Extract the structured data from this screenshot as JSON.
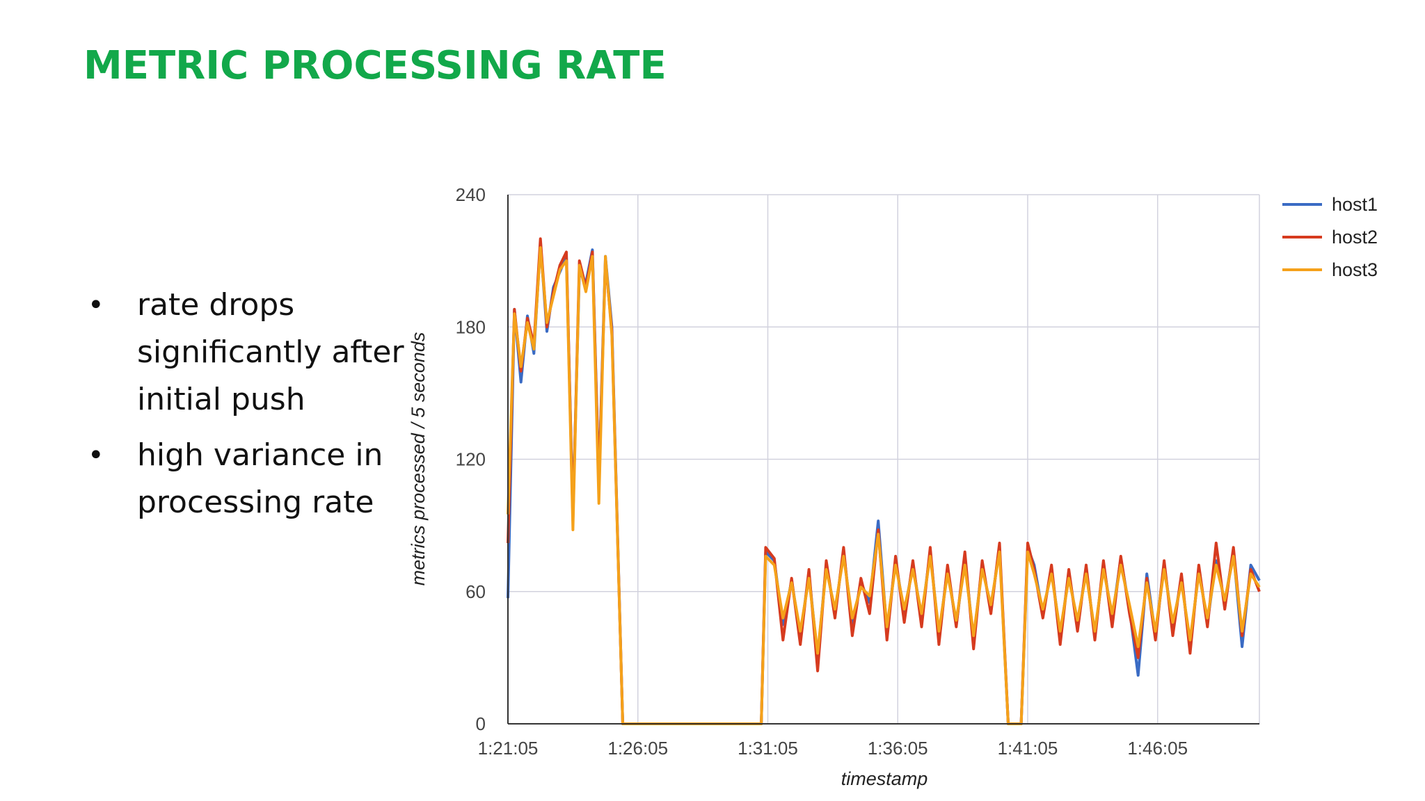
{
  "slide": {
    "title": "METRIC PROCESSING RATE",
    "bullets": [
      "rate drops significantly after initial push",
      "high variance in processing rate"
    ]
  },
  "colors": {
    "title": "#12a84a",
    "grid": "#d2d2de",
    "axis": "#333333"
  },
  "chart_data": {
    "type": "line",
    "title": "",
    "xlabel": "timestamp",
    "ylabel": "metrics processed / 5 seconds",
    "x_unit": "time (h:mm:ss)",
    "xlim": [
      "1:21:05",
      "1:50:00"
    ],
    "ylim": [
      0,
      240
    ],
    "yticks": [
      0,
      60,
      120,
      180,
      240
    ],
    "xticks": [
      "1:21:05",
      "1:26:05",
      "1:31:05",
      "1:36:05",
      "1:41:05",
      "1:46:05"
    ],
    "grid": true,
    "legend_position": "right",
    "x": [
      "1:21:05",
      "1:21:20",
      "1:21:35",
      "1:21:50",
      "1:22:05",
      "1:22:20",
      "1:22:35",
      "1:22:50",
      "1:23:05",
      "1:23:20",
      "1:23:35",
      "1:23:50",
      "1:24:05",
      "1:24:20",
      "1:24:35",
      "1:24:50",
      "1:25:05",
      "1:25:30",
      "1:26:05",
      "1:27:05",
      "1:28:05",
      "1:29:05",
      "1:30:05",
      "1:30:50",
      "1:31:00",
      "1:31:20",
      "1:31:40",
      "1:32:00",
      "1:32:20",
      "1:32:40",
      "1:33:00",
      "1:33:20",
      "1:33:40",
      "1:34:00",
      "1:34:20",
      "1:34:40",
      "1:35:00",
      "1:35:20",
      "1:35:40",
      "1:36:00",
      "1:36:20",
      "1:36:40",
      "1:37:00",
      "1:37:20",
      "1:37:40",
      "1:38:00",
      "1:38:20",
      "1:38:40",
      "1:39:00",
      "1:39:20",
      "1:39:40",
      "1:40:00",
      "1:40:20",
      "1:40:40",
      "1:40:50",
      "1:41:05",
      "1:41:20",
      "1:41:40",
      "1:42:00",
      "1:42:20",
      "1:42:40",
      "1:43:00",
      "1:43:20",
      "1:43:40",
      "1:44:00",
      "1:44:20",
      "1:44:40",
      "1:45:00",
      "1:45:20",
      "1:45:40",
      "1:46:00",
      "1:46:20",
      "1:46:40",
      "1:47:00",
      "1:47:20",
      "1:47:40",
      "1:48:00",
      "1:48:20",
      "1:48:40",
      "1:49:00",
      "1:49:20",
      "1:49:40",
      "1:50:00"
    ],
    "series": [
      {
        "name": "host1",
        "color": "#3a6bc4",
        "values": [
          57,
          188,
          155,
          185,
          168,
          218,
          178,
          198,
          205,
          212,
          95,
          205,
          200,
          215,
          110,
          212,
          180,
          0,
          0,
          0,
          0,
          0,
          0,
          0,
          78,
          74,
          45,
          65,
          40,
          68,
          30,
          72,
          50,
          78,
          45,
          64,
          55,
          92,
          42,
          74,
          50,
          72,
          48,
          78,
          40,
          70,
          45,
          75,
          38,
          72,
          52,
          80,
          0,
          0,
          0,
          80,
          72,
          50,
          70,
          40,
          68,
          45,
          70,
          40,
          72,
          48,
          75,
          52,
          22,
          68,
          40,
          72,
          44,
          66,
          35,
          70,
          46,
          74,
          55,
          78,
          35,
          72,
          65
        ]
      },
      {
        "name": "host2",
        "color": "#d63b1f",
        "values": [
          82,
          188,
          160,
          184,
          172,
          220,
          180,
          196,
          208,
          214,
          92,
          210,
          198,
          214,
          108,
          210,
          178,
          0,
          0,
          0,
          0,
          0,
          0,
          0,
          80,
          75,
          38,
          66,
          36,
          70,
          24,
          74,
          48,
          80,
          40,
          66,
          50,
          88,
          38,
          76,
          46,
          74,
          44,
          80,
          36,
          72,
          44,
          78,
          34,
          74,
          50,
          82,
          0,
          0,
          0,
          82,
          70,
          48,
          72,
          36,
          70,
          42,
          72,
          38,
          74,
          44,
          76,
          50,
          30,
          66,
          38,
          74,
          40,
          68,
          32,
          72,
          44,
          82,
          52,
          80,
          40,
          70,
          60
        ]
      },
      {
        "name": "host3",
        "color": "#f5a11a",
        "values": [
          95,
          186,
          162,
          182,
          170,
          216,
          182,
          194,
          206,
          210,
          88,
          208,
          196,
          212,
          100,
          212,
          176,
          0,
          0,
          0,
          0,
          0,
          0,
          0,
          76,
          72,
          48,
          64,
          42,
          66,
          32,
          70,
          52,
          76,
          48,
          62,
          58,
          86,
          44,
          72,
          52,
          70,
          50,
          76,
          42,
          68,
          47,
          72,
          40,
          70,
          54,
          78,
          0,
          0,
          0,
          78,
          68,
          52,
          68,
          42,
          66,
          47,
          68,
          42,
          70,
          50,
          72,
          54,
          35,
          64,
          42,
          70,
          46,
          64,
          38,
          68,
          48,
          72,
          56,
          76,
          42,
          68,
          62
        ]
      }
    ]
  }
}
